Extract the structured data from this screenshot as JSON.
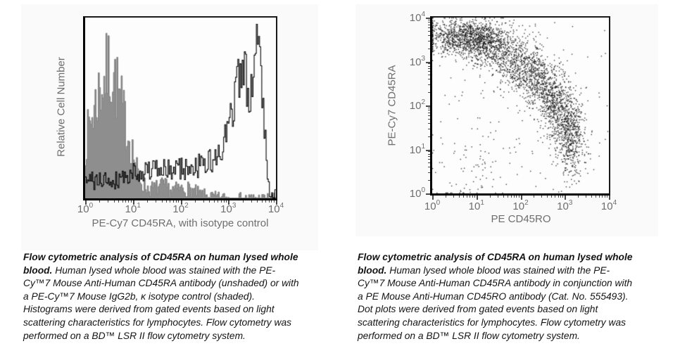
{
  "colors": {
    "axis_text": "#6e6e6e",
    "plot_border": "#000000",
    "shaded_fill": "#8e8e8e",
    "shaded_edge": "#7b7b7b",
    "open_line": "#000000",
    "dot_color": "#111111",
    "caption_text": "#141414",
    "figure_bg": "#fafafa"
  },
  "figures": [
    {
      "y_axis_label": "Relative Cell Number",
      "x_axis_label": "PE-Cy7 CD45RA, with isotype control",
      "tick_base": "10",
      "x_tick_exponents": [
        "0",
        "1",
        "2",
        "3",
        "4"
      ],
      "y_tick_exponents": [],
      "caption_bold": "Flow cytometric analysis of CD45RA on human lysed whole blood.",
      "caption_rest": "  Human lysed whole blood was stained with the PE-Cy™7 Mouse Anti-Human CD45RA antibody (unshaded) or with a PE-Cy™7 Mouse IgG2b, κ isotype control (shaded).  Histograms were derived from gated events based on light scattering characteristics for lymphocytes. Flow cytometry was performed on a BD™ LSR II flow cytometry system."
    },
    {
      "y_axis_label": "PE-Cy7 CD45RA",
      "x_axis_label": "PE CD45RO",
      "tick_base": "10",
      "x_tick_exponents": [
        "0",
        "1",
        "2",
        "3",
        "4"
      ],
      "y_tick_exponents": [
        "0",
        "1",
        "2",
        "3",
        "4"
      ],
      "caption_bold": "Flow cytometric analysis of CD45RA on human lysed whole blood.",
      "caption_rest": "  Human lysed whole blood was stained with the PE-Cy™7 Mouse Anti-Human CD45RA antibody in conjunction with a PE Mouse Anti-Human CD45RO antibody (Cat. No. 555493).  Dot plots were derived from gated events based on light scattering characteristics for lymphocytes. Flow cytometry was performed on a BD™ LSR II flow cytometry system."
    }
  ],
  "chart_data": [
    {
      "type": "histogram",
      "xlabel": "PE-Cy7 CD45RA, with isotype control",
      "ylabel": "Relative Cell Number",
      "x_scale": "log10",
      "x_range": [
        1,
        10000
      ],
      "ylim": [
        0,
        1
      ],
      "grid": false,
      "bins": 175,
      "series": [
        {
          "name": "PE-Cy7 Mouse IgG2b, κ isotype control (shaded)",
          "style": "filled",
          "color": "#8e8e8e",
          "edge": "#7b7b7b",
          "seed": 7,
          "noise": {
            "base": 0.03,
            "scale": 0.3
          },
          "envelope": [
            [
              0,
              0.28
            ],
            [
              0.1,
              0.42
            ],
            [
              0.2,
              0.5
            ],
            [
              0.3,
              0.6
            ],
            [
              0.4,
              0.66
            ],
            [
              0.5,
              0.72
            ],
            [
              0.6,
              0.68
            ],
            [
              0.7,
              0.58
            ],
            [
              0.8,
              0.47
            ],
            [
              0.9,
              0.36
            ],
            [
              1.0,
              0.26
            ],
            [
              1.1,
              0.14
            ],
            [
              1.2,
              0.08
            ],
            [
              1.35,
              0.05
            ],
            [
              1.5,
              0.06
            ],
            [
              1.65,
              0.07
            ],
            [
              1.8,
              0.045
            ],
            [
              1.95,
              0.05
            ],
            [
              2.1,
              0.055
            ],
            [
              2.25,
              0.045
            ],
            [
              2.4,
              0.025
            ],
            [
              2.6,
              0.012
            ],
            [
              2.8,
              0.006
            ],
            [
              3.0,
              0.004
            ],
            [
              3.5,
              0.002
            ],
            [
              4,
              0.001
            ]
          ]
        },
        {
          "name": "PE-Cy7 Mouse Anti-Human CD45RA (unshaded)",
          "style": "line",
          "color": "#000000",
          "seed": 41,
          "noise": {
            "base": 0.04,
            "scale": 0.16
          },
          "envelope": [
            [
              0,
              0.08
            ],
            [
              0.15,
              0.1
            ],
            [
              0.3,
              0.09
            ],
            [
              0.45,
              0.11
            ],
            [
              0.6,
              0.1
            ],
            [
              0.75,
              0.12
            ],
            [
              0.9,
              0.12
            ],
            [
              1.0,
              0.14
            ],
            [
              1.1,
              0.17
            ],
            [
              1.2,
              0.14
            ],
            [
              1.35,
              0.16
            ],
            [
              1.5,
              0.15
            ],
            [
              1.65,
              0.16
            ],
            [
              1.8,
              0.15
            ],
            [
              1.95,
              0.17
            ],
            [
              2.1,
              0.16
            ],
            [
              2.25,
              0.17
            ],
            [
              2.4,
              0.18
            ],
            [
              2.55,
              0.19
            ],
            [
              2.7,
              0.21
            ],
            [
              2.8,
              0.24
            ],
            [
              2.9,
              0.29
            ],
            [
              3.0,
              0.38
            ],
            [
              3.1,
              0.5
            ],
            [
              3.2,
              0.63
            ],
            [
              3.3,
              0.72
            ],
            [
              3.38,
              0.66
            ],
            [
              3.45,
              0.6
            ],
            [
              3.52,
              0.7
            ],
            [
              3.6,
              0.84
            ],
            [
              3.66,
              0.8
            ],
            [
              3.72,
              0.6
            ],
            [
              3.78,
              0.36
            ],
            [
              3.83,
              0.14
            ],
            [
              3.87,
              0.05
            ],
            [
              3.92,
              0.03
            ],
            [
              4,
              0.015
            ]
          ]
        }
      ]
    },
    {
      "type": "scatter",
      "xlabel": "PE CD45RO",
      "ylabel": "PE-Cy7 CD45RA",
      "x_scale": "log10",
      "y_scale": "log10",
      "x_range": [
        1,
        10000
      ],
      "y_range": [
        1,
        10000
      ],
      "grid": false,
      "seed": 13,
      "dot_size": 1.4,
      "dot_alpha": 0.82,
      "clusters": [
        {
          "cx": 0.75,
          "cy": 3.55,
          "sx": 0.45,
          "sy": 0.2,
          "n": 1000
        },
        {
          "cx": 1.35,
          "cy": 3.35,
          "sx": 0.35,
          "sy": 0.25,
          "n": 500
        },
        {
          "cx": 1.9,
          "cy": 2.95,
          "sx": 0.3,
          "sy": 0.28,
          "n": 400
        },
        {
          "cx": 2.35,
          "cy": 2.6,
          "sx": 0.25,
          "sy": 0.3,
          "n": 400
        },
        {
          "cx": 2.7,
          "cy": 2.2,
          "sx": 0.22,
          "sy": 0.33,
          "n": 380
        },
        {
          "cx": 2.95,
          "cy": 1.75,
          "sx": 0.2,
          "sy": 0.38,
          "n": 350
        },
        {
          "cx": 3.15,
          "cy": 1.25,
          "sx": 0.17,
          "sy": 0.45,
          "n": 450
        },
        {
          "cx": 0.9,
          "cy": 0.6,
          "sx": 0.45,
          "sy": 0.45,
          "n": 70
        },
        {
          "type": "uniform",
          "x0": 0,
          "x1": 4,
          "y0": 0,
          "y1": 4,
          "n": 120
        }
      ]
    }
  ]
}
